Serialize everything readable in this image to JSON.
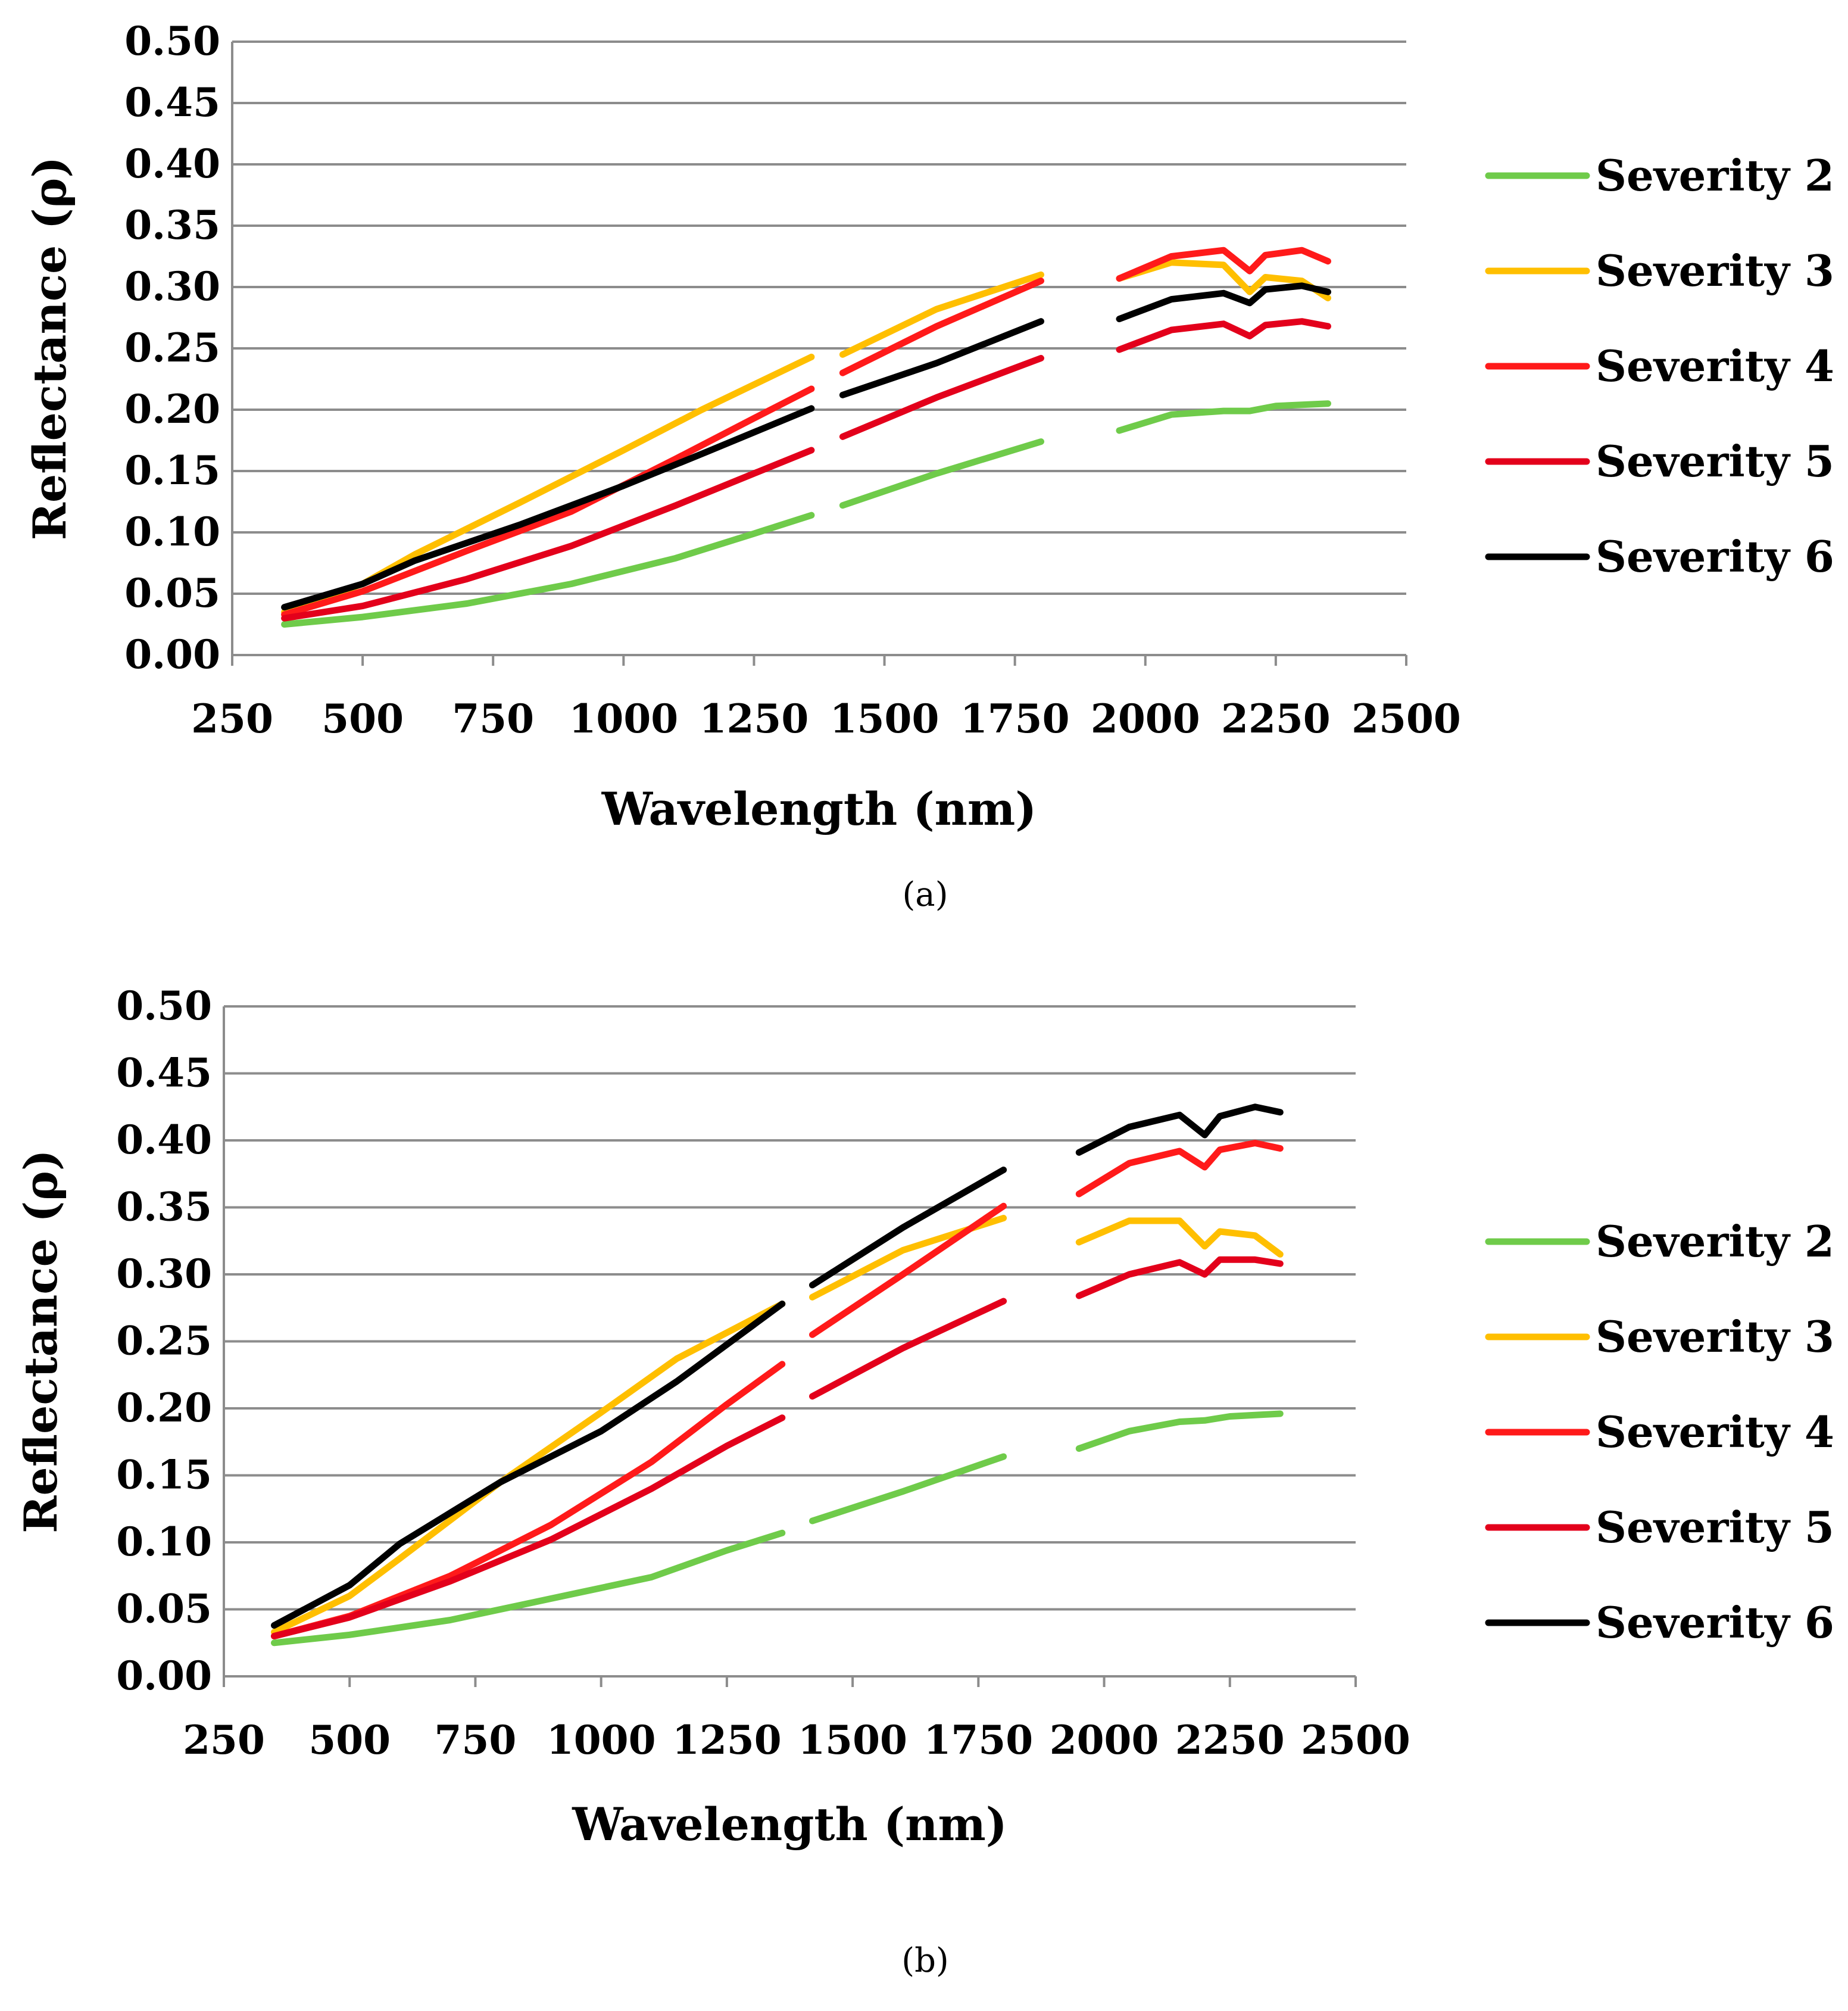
{
  "chart_data": [
    {
      "type": "line",
      "caption": "(a)",
      "title": "",
      "xlabel": "Wavelength (nm)",
      "ylabel": "Reflectance (ρ)",
      "xlim": [
        250,
        2500
      ],
      "ylim": [
        0.0,
        0.5
      ],
      "x_ticks": [
        "250",
        "500",
        "750",
        "1000",
        "1250",
        "1500",
        "1750",
        "2000",
        "2250",
        "2500"
      ],
      "y_ticks": [
        "0.00",
        "0.05",
        "0.10",
        "0.15",
        "0.20",
        "0.25",
        "0.30",
        "0.35",
        "0.40",
        "0.45",
        "0.50"
      ],
      "grid": "horizontal",
      "legend_position": "right",
      "series": [
        {
          "name": "Severity 2",
          "color": "#6FCB4A",
          "segments": [
            [
              [
                350,
                0.025
              ],
              [
                500,
                0.031
              ],
              [
                700,
                0.042
              ],
              [
                900,
                0.058
              ],
              [
                1100,
                0.079
              ],
              [
                1250,
                0.099
              ],
              [
                1360,
                0.114
              ]
            ],
            [
              [
                1420,
                0.122
              ],
              [
                1600,
                0.148
              ],
              [
                1800,
                0.174
              ]
            ],
            [
              [
                1950,
                0.183
              ],
              [
                2050,
                0.196
              ],
              [
                2150,
                0.199
              ],
              [
                2200,
                0.199
              ],
              [
                2250,
                0.203
              ],
              [
                2350,
                0.205
              ]
            ]
          ]
        },
        {
          "name": "Severity 3",
          "color": "#FFBF00",
          "segments": [
            [
              [
                350,
                0.035
              ],
              [
                500,
                0.058
              ],
              [
                600,
                0.082
              ],
              [
                800,
                0.124
              ],
              [
                1000,
                0.167
              ],
              [
                1150,
                0.2
              ],
              [
                1360,
                0.243
              ]
            ],
            [
              [
                1420,
                0.245
              ],
              [
                1600,
                0.282
              ],
              [
                1800,
                0.31
              ]
            ],
            [
              [
                1950,
                0.307
              ],
              [
                2050,
                0.32
              ],
              [
                2150,
                0.318
              ],
              [
                2200,
                0.296
              ],
              [
                2230,
                0.308
              ],
              [
                2300,
                0.305
              ],
              [
                2350,
                0.291
              ]
            ]
          ]
        },
        {
          "name": "Severity 4",
          "color": "#FF1A1A",
          "segments": [
            [
              [
                350,
                0.033
              ],
              [
                500,
                0.052
              ],
              [
                700,
                0.085
              ],
              [
                900,
                0.117
              ],
              [
                1100,
                0.16
              ],
              [
                1250,
                0.193
              ],
              [
                1360,
                0.217
              ]
            ],
            [
              [
                1420,
                0.23
              ],
              [
                1600,
                0.268
              ],
              [
                1800,
                0.305
              ]
            ],
            [
              [
                1950,
                0.307
              ],
              [
                2050,
                0.325
              ],
              [
                2150,
                0.33
              ],
              [
                2200,
                0.313
              ],
              [
                2230,
                0.326
              ],
              [
                2300,
                0.33
              ],
              [
                2350,
                0.321
              ]
            ]
          ]
        },
        {
          "name": "Severity 5",
          "color": "#E3001B",
          "segments": [
            [
              [
                350,
                0.03
              ],
              [
                500,
                0.04
              ],
              [
                700,
                0.062
              ],
              [
                900,
                0.089
              ],
              [
                1100,
                0.122
              ],
              [
                1250,
                0.148
              ],
              [
                1360,
                0.167
              ]
            ],
            [
              [
                1420,
                0.178
              ],
              [
                1600,
                0.21
              ],
              [
                1800,
                0.242
              ]
            ],
            [
              [
                1950,
                0.249
              ],
              [
                2050,
                0.265
              ],
              [
                2150,
                0.27
              ],
              [
                2200,
                0.26
              ],
              [
                2230,
                0.269
              ],
              [
                2300,
                0.272
              ],
              [
                2350,
                0.268
              ]
            ]
          ]
        },
        {
          "name": "Severity 6",
          "color": "#000000",
          "segments": [
            [
              [
                350,
                0.039
              ],
              [
                500,
                0.058
              ],
              [
                600,
                0.077
              ],
              [
                800,
                0.106
              ],
              [
                1000,
                0.138
              ],
              [
                1150,
                0.164
              ],
              [
                1360,
                0.201
              ]
            ],
            [
              [
                1420,
                0.212
              ],
              [
                1600,
                0.238
              ],
              [
                1800,
                0.272
              ]
            ],
            [
              [
                1950,
                0.274
              ],
              [
                2050,
                0.29
              ],
              [
                2150,
                0.295
              ],
              [
                2200,
                0.287
              ],
              [
                2230,
                0.298
              ],
              [
                2300,
                0.301
              ],
              [
                2350,
                0.296
              ]
            ]
          ]
        }
      ]
    },
    {
      "type": "line",
      "caption": "(b)",
      "title": "",
      "xlabel": "Wavelength (nm)",
      "ylabel": "Reflectance (ρ)",
      "xlim": [
        250,
        2500
      ],
      "ylim": [
        0.0,
        0.5
      ],
      "x_ticks": [
        "250",
        "500",
        "750",
        "1000",
        "1250",
        "1500",
        "1750",
        "2000",
        "2250",
        "2500"
      ],
      "y_ticks": [
        "0.00",
        "0.05",
        "0.10",
        "0.15",
        "0.20",
        "0.25",
        "0.30",
        "0.35",
        "0.40",
        "0.45",
        "0.50"
      ],
      "grid": "horizontal",
      "legend_position": "right",
      "series": [
        {
          "name": "Severity 2",
          "color": "#6FCB4A",
          "segments": [
            [
              [
                350,
                0.025
              ],
              [
                500,
                0.031
              ],
              [
                700,
                0.042
              ],
              [
                900,
                0.058
              ],
              [
                1100,
                0.074
              ],
              [
                1250,
                0.094
              ],
              [
                1360,
                0.107
              ]
            ],
            [
              [
                1420,
                0.116
              ],
              [
                1600,
                0.138
              ],
              [
                1800,
                0.164
              ]
            ],
            [
              [
                1950,
                0.17
              ],
              [
                2050,
                0.183
              ],
              [
                2150,
                0.19
              ],
              [
                2200,
                0.191
              ],
              [
                2250,
                0.194
              ],
              [
                2350,
                0.196
              ]
            ]
          ]
        },
        {
          "name": "Severity 3",
          "color": "#FFBF00",
          "segments": [
            [
              [
                350,
                0.033
              ],
              [
                500,
                0.06
              ],
              [
                600,
                0.088
              ],
              [
                800,
                0.145
              ],
              [
                1000,
                0.197
              ],
              [
                1150,
                0.237
              ],
              [
                1360,
                0.278
              ]
            ],
            [
              [
                1420,
                0.283
              ],
              [
                1600,
                0.318
              ],
              [
                1800,
                0.342
              ]
            ],
            [
              [
                1950,
                0.324
              ],
              [
                2050,
                0.34
              ],
              [
                2150,
                0.34
              ],
              [
                2200,
                0.321
              ],
              [
                2230,
                0.332
              ],
              [
                2300,
                0.329
              ],
              [
                2350,
                0.315
              ]
            ]
          ]
        },
        {
          "name": "Severity 4",
          "color": "#FF1A1A",
          "segments": [
            [
              [
                350,
                0.03
              ],
              [
                500,
                0.045
              ],
              [
                700,
                0.075
              ],
              [
                900,
                0.113
              ],
              [
                1100,
                0.16
              ],
              [
                1250,
                0.203
              ],
              [
                1360,
                0.233
              ]
            ],
            [
              [
                1420,
                0.255
              ],
              [
                1600,
                0.3
              ],
              [
                1800,
                0.351
              ]
            ],
            [
              [
                1950,
                0.36
              ],
              [
                2050,
                0.383
              ],
              [
                2150,
                0.392
              ],
              [
                2200,
                0.38
              ],
              [
                2230,
                0.393
              ],
              [
                2300,
                0.398
              ],
              [
                2350,
                0.394
              ]
            ]
          ]
        },
        {
          "name": "Severity 5",
          "color": "#E3001B",
          "segments": [
            [
              [
                350,
                0.03
              ],
              [
                500,
                0.044
              ],
              [
                700,
                0.071
              ],
              [
                900,
                0.102
              ],
              [
                1100,
                0.14
              ],
              [
                1250,
                0.172
              ],
              [
                1360,
                0.193
              ]
            ],
            [
              [
                1420,
                0.209
              ],
              [
                1600,
                0.245
              ],
              [
                1800,
                0.28
              ]
            ],
            [
              [
                1950,
                0.284
              ],
              [
                2050,
                0.3
              ],
              [
                2150,
                0.309
              ],
              [
                2200,
                0.3
              ],
              [
                2230,
                0.311
              ],
              [
                2300,
                0.311
              ],
              [
                2350,
                0.308
              ]
            ]
          ]
        },
        {
          "name": "Severity 6",
          "color": "#000000",
          "segments": [
            [
              [
                350,
                0.038
              ],
              [
                500,
                0.068
              ],
              [
                600,
                0.099
              ],
              [
                800,
                0.145
              ],
              [
                1000,
                0.183
              ],
              [
                1150,
                0.22
              ],
              [
                1360,
                0.278
              ]
            ],
            [
              [
                1420,
                0.292
              ],
              [
                1600,
                0.335
              ],
              [
                1800,
                0.378
              ]
            ],
            [
              [
                1950,
                0.391
              ],
              [
                2050,
                0.41
              ],
              [
                2150,
                0.419
              ],
              [
                2200,
                0.404
              ],
              [
                2230,
                0.418
              ],
              [
                2300,
                0.425
              ],
              [
                2350,
                0.421
              ]
            ]
          ]
        }
      ]
    }
  ]
}
